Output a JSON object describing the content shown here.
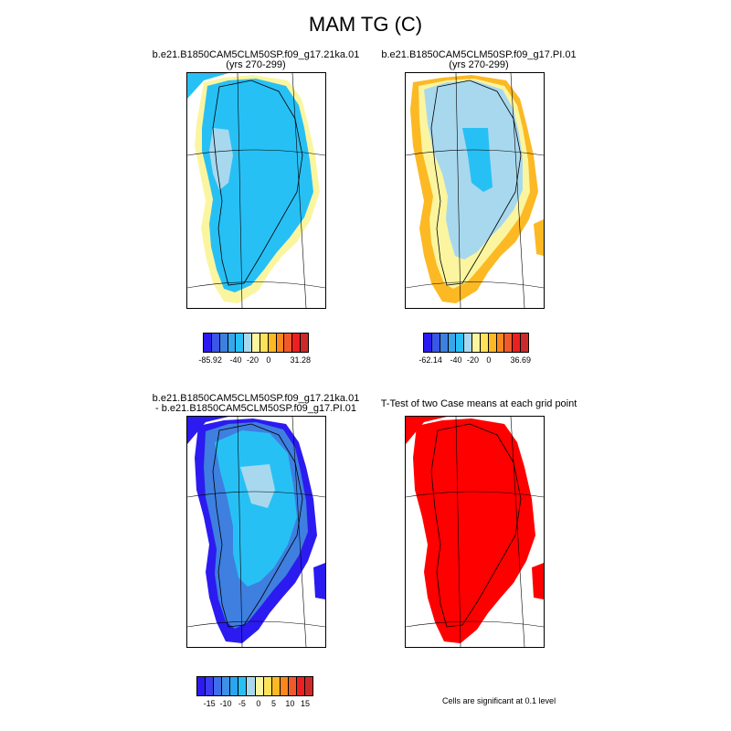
{
  "title": "MAM TG (C)",
  "panels": {
    "p1": {
      "line1": "b.e21.B1850CAM5CLM50SP.f09_g17.21ka.01",
      "line2": "(yrs 270-299)"
    },
    "p2": {
      "line1": "b.e21.B1850CAM5CLM50SP.f09_g17.PI.01",
      "line2": "(yrs 270-299)"
    },
    "p3": {
      "line1": "b.e21.B1850CAM5CLM50SP.f09_g17.21ka.01",
      "line2": "- b.e21.B1850CAM5CLM50SP.f09_g17.PI.01"
    },
    "p4": {
      "line1": "T-Test of two Case means at each grid point"
    }
  },
  "colorbars": {
    "cb1": {
      "labels": [
        "-85.92",
        "-40",
        "-20",
        "0",
        "31.28"
      ]
    },
    "cb2": {
      "labels": [
        "-62.14",
        "-40",
        "-20",
        "0",
        "36.69"
      ]
    },
    "cb3": {
      "labels": [
        "-15",
        "-10",
        "-5",
        "0",
        "5",
        "10",
        "15"
      ]
    }
  },
  "colors": {
    "palette": [
      "#2b1bf0",
      "#3a56e8",
      "#3e7fe0",
      "#38a6ea",
      "#27c0f5",
      "#a8d8ee",
      "#fbf5a0",
      "#ffe25a",
      "#fcb923",
      "#f9871d",
      "#f05a2a",
      "#ec2020",
      "#cc2a2a"
    ],
    "palette_diff": [
      "#2b1bf0",
      "#3b3cf0",
      "#3e6ee8",
      "#3e8fe6",
      "#2ba5f0",
      "#27c0f5",
      "#a8d8ee",
      "#fbf5a0",
      "#ffe25a",
      "#fcb923",
      "#f9871d",
      "#f05a2a",
      "#ec2020",
      "#cc2a2a"
    ],
    "significant": "#ff0000"
  },
  "note": "Cells are significant at 0.1 level"
}
